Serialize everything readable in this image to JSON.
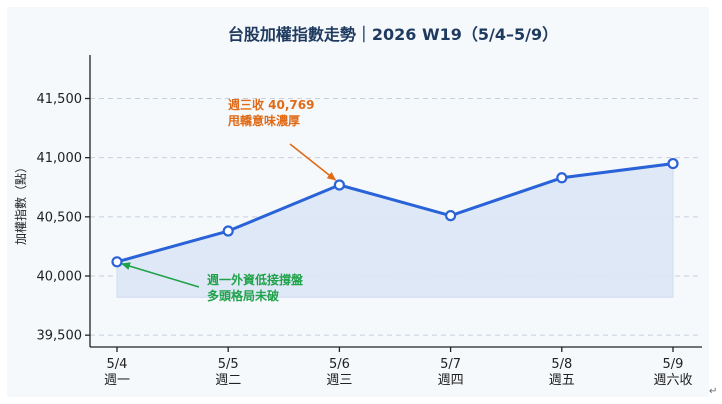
{
  "chart_data": {
    "type": "line",
    "title": "台股加權指數走勢｜2026 W19（5/4–5/9）",
    "xlabel": "",
    "ylabel": "加權指數（點）",
    "categories": [
      "5/4",
      "5/5",
      "5/6",
      "5/7",
      "5/8",
      "5/9"
    ],
    "category_sublabels": [
      "週一",
      "週二",
      "週三",
      "週四",
      "週五",
      "週六收"
    ],
    "series": [
      {
        "values": [
          40120,
          40380,
          40769,
          40510,
          40830,
          40950
        ]
      }
    ],
    "ylim": [
      39400,
      41800
    ],
    "yticks": [
      39500,
      40000,
      40500,
      41000,
      41500
    ],
    "ytick_labels": [
      "39,500",
      "40,000",
      "40,500",
      "41,000",
      "41,500"
    ],
    "grid": true,
    "area_fill": true,
    "area_baseline": 39820,
    "annotations": [
      {
        "lines": [
          "週三收 40,769",
          "甩轎意味濃厚"
        ],
        "target_index": 2,
        "color": "#e06a16"
      },
      {
        "lines": [
          "週一外資低接撐盤",
          "多頭格局未破"
        ],
        "target_index": 0,
        "color": "#1fa24a"
      }
    ],
    "colors": {
      "line": "#2a63d8",
      "fill": "#dde7f6",
      "grid": "#c8d0dc",
      "axis": "#222222",
      "title": "#1f3a5f"
    }
  }
}
